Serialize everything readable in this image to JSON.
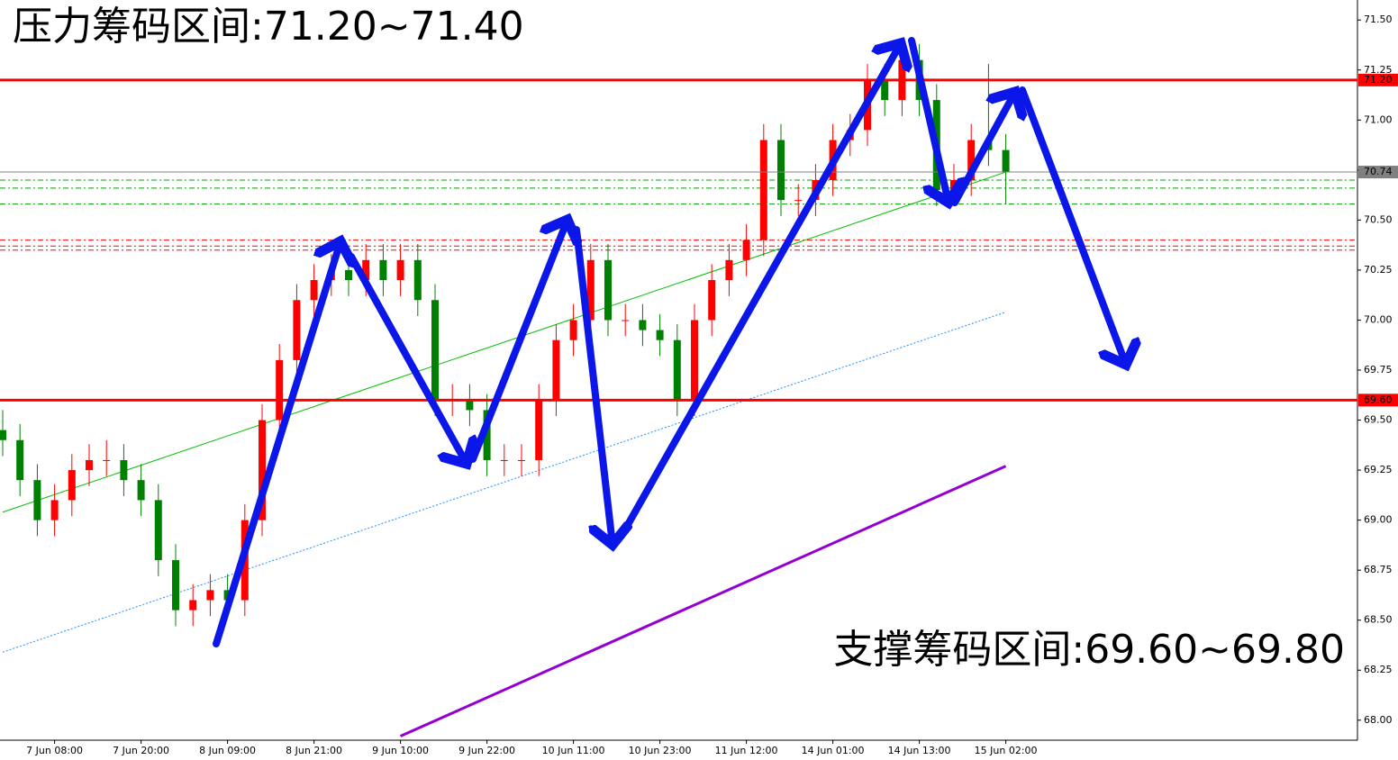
{
  "chart_data": {
    "type": "candlestick",
    "title": "压力筹码区间:71.20~71.40",
    "subtitle": "支撑筹码区间:69.60~69.80",
    "categories": [
      null,
      null,
      null,
      "7 Jun 08:00",
      null,
      null,
      null,
      null,
      "7 Jun 20:00",
      null,
      null,
      null,
      null,
      "8 Jun 09:00",
      null,
      null,
      null,
      null,
      "8 Jun 21:00",
      null,
      null,
      null,
      null,
      "9 Jun 10:00",
      null,
      null,
      null,
      null,
      "9 Jun 22:00",
      null,
      null,
      null,
      null,
      "10 Jun 11:00",
      null,
      null,
      null,
      null,
      "10 Jun 23:00",
      null,
      null,
      null,
      null,
      "11 Jun 12:00",
      null,
      null,
      null,
      null,
      "14 Jun 01:00",
      null,
      null,
      null,
      null,
      "14 Jun 13:00",
      null,
      null,
      null,
      null,
      "15 Jun 02:00"
    ],
    "open": [
      69.45,
      69.4,
      69.2,
      69.0,
      69.1,
      69.25,
      69.3,
      69.3,
      69.2,
      69.1,
      68.8,
      68.55,
      68.6,
      68.65,
      68.6,
      69.0,
      69.5,
      69.8,
      70.1,
      70.2,
      70.25,
      70.2,
      70.3,
      70.2,
      70.3,
      70.1,
      69.6,
      69.6,
      69.55,
      69.3,
      69.3,
      69.3,
      69.6,
      69.9,
      70.0,
      70.3,
      70.0,
      70.0,
      69.95,
      69.9,
      69.6,
      70.0,
      70.2,
      70.3,
      70.4,
      70.9,
      70.6,
      70.6,
      70.7,
      70.9,
      70.95,
      71.2,
      71.1,
      71.3,
      71.1,
      70.65,
      70.7,
      70.9,
      70.85
    ],
    "high": [
      69.55,
      69.48,
      69.28,
      69.18,
      69.33,
      69.38,
      69.4,
      69.38,
      69.28,
      69.18,
      68.88,
      68.68,
      68.73,
      68.73,
      69.08,
      69.58,
      69.88,
      70.18,
      70.28,
      70.33,
      70.33,
      70.38,
      70.38,
      70.38,
      70.38,
      70.18,
      69.68,
      69.68,
      69.63,
      69.38,
      69.38,
      69.68,
      69.98,
      70.08,
      70.38,
      70.38,
      70.08,
      70.08,
      70.03,
      69.98,
      70.08,
      70.28,
      70.38,
      70.48,
      70.98,
      70.98,
      70.68,
      70.78,
      70.98,
      71.03,
      71.28,
      71.28,
      71.38,
      71.38,
      71.18,
      70.78,
      70.98,
      71.28,
      70.93
    ],
    "low": [
      69.32,
      69.12,
      68.92,
      68.92,
      69.02,
      69.17,
      69.22,
      69.12,
      69.02,
      68.72,
      68.47,
      68.47,
      68.52,
      68.52,
      68.52,
      68.92,
      69.42,
      69.72,
      70.02,
      70.12,
      70.12,
      70.12,
      70.12,
      70.12,
      70.02,
      69.52,
      69.52,
      69.47,
      69.22,
      69.22,
      69.22,
      69.22,
      69.52,
      69.82,
      69.92,
      69.92,
      69.92,
      69.87,
      69.82,
      69.52,
      69.52,
      69.92,
      70.12,
      70.22,
      70.32,
      70.52,
      70.52,
      70.52,
      70.62,
      70.82,
      70.87,
      71.02,
      71.02,
      71.02,
      70.57,
      70.57,
      70.62,
      70.77,
      70.58
    ],
    "close": [
      69.4,
      69.2,
      69.0,
      69.1,
      69.25,
      69.3,
      69.3,
      69.2,
      69.1,
      68.8,
      68.55,
      68.6,
      68.65,
      68.6,
      69.0,
      69.5,
      69.8,
      70.1,
      70.2,
      70.25,
      70.2,
      70.3,
      70.2,
      70.3,
      70.1,
      69.6,
      69.6,
      69.55,
      69.3,
      69.3,
      69.3,
      69.6,
      69.9,
      70.0,
      70.3,
      70.0,
      70.0,
      69.95,
      69.9,
      69.6,
      70.0,
      70.2,
      70.3,
      70.4,
      70.9,
      70.6,
      70.6,
      70.7,
      70.9,
      70.95,
      71.2,
      71.1,
      71.3,
      71.1,
      70.65,
      70.7,
      70.9,
      70.85,
      70.74
    ],
    "up_color": "#ff0000",
    "down_color": "#008000",
    "ylim": [
      67.9,
      71.6
    ],
    "yticks": [
      {
        "value": 68,
        "label": "68.00"
      },
      {
        "value": 68.25,
        "label": "68.25"
      },
      {
        "value": 68.5,
        "label": "68.50"
      },
      {
        "value": 68.75,
        "label": "68.75"
      },
      {
        "value": 69,
        "label": "69.00"
      },
      {
        "value": 69.25,
        "label": "69.25"
      },
      {
        "value": 69.5,
        "label": "69.50"
      },
      {
        "value": 69.75,
        "label": "69.75"
      },
      {
        "value": 70,
        "label": "70.00"
      },
      {
        "value": 70.25,
        "label": "70.25"
      },
      {
        "value": 70.5,
        "label": "70.50"
      },
      {
        "value": 70.75,
        "label": "70.75"
      },
      {
        "value": 71,
        "label": "71.00"
      },
      {
        "value": 71.25,
        "label": "71.25"
      },
      {
        "value": 71.5,
        "label": "71.50"
      }
    ],
    "levels": [
      {
        "value": 71.2,
        "label": "71.20",
        "color": "#ff0000"
      },
      {
        "value": 69.6,
        "label": "69.60",
        "color": "#ff0000"
      },
      {
        "value": 70.74,
        "label": "70.74",
        "color": "#808080"
      }
    ],
    "dashed_levels": [
      {
        "value": 70.7,
        "color": "#00a000"
      },
      {
        "value": 70.66,
        "color": "#00a000"
      },
      {
        "value": 70.58,
        "color": "#00a000"
      },
      {
        "value": 70.4,
        "color": "#ff0000"
      },
      {
        "value": 70.37,
        "color": "#ff0000"
      },
      {
        "value": 70.35,
        "color": "#ff0000"
      }
    ],
    "overlays": [
      {
        "color": "#00c000",
        "x": [
          0,
          58
        ],
        "values": [
          69.04,
          70.74
        ]
      },
      {
        "color": "#1e90ff",
        "x": [
          0,
          58
        ],
        "values": [
          68.34,
          70.04
        ]
      },
      {
        "color": "#9400d3",
        "x": [
          23,
          58
        ],
        "values": [
          67.92,
          69.27
        ]
      }
    ]
  }
}
